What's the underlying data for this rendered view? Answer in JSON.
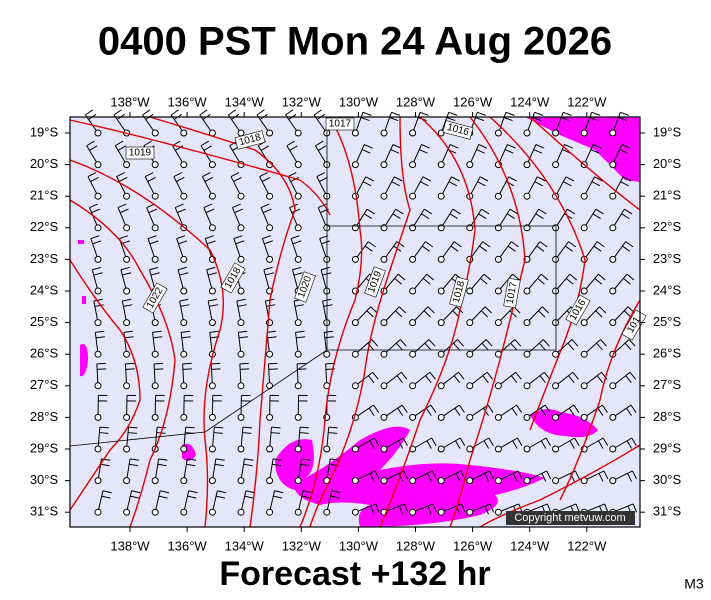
{
  "header": {
    "title": "0400 PST Mon 24 Aug 2026"
  },
  "axes": {
    "longitudes": [
      "138°W",
      "136°W",
      "134°W",
      "132°W",
      "130°W",
      "128°W",
      "126°W",
      "124°W",
      "122°W"
    ],
    "latitudes": [
      "19°S",
      "20°S",
      "21°S",
      "22°S",
      "23°S",
      "24°S",
      "25°S",
      "26°S",
      "27°S",
      "28°S",
      "29°S",
      "30°S",
      "31°S"
    ]
  },
  "isobar_labels": [
    "1019",
    "1018",
    "1017",
    "1016",
    "1022",
    "1018",
    "1020",
    "1019",
    "1018",
    "1017",
    "1016",
    "101"
  ],
  "footer": {
    "forecast": "Forecast +132 hr",
    "copyright": "Copyright metvuw.com",
    "model": "M3"
  }
}
